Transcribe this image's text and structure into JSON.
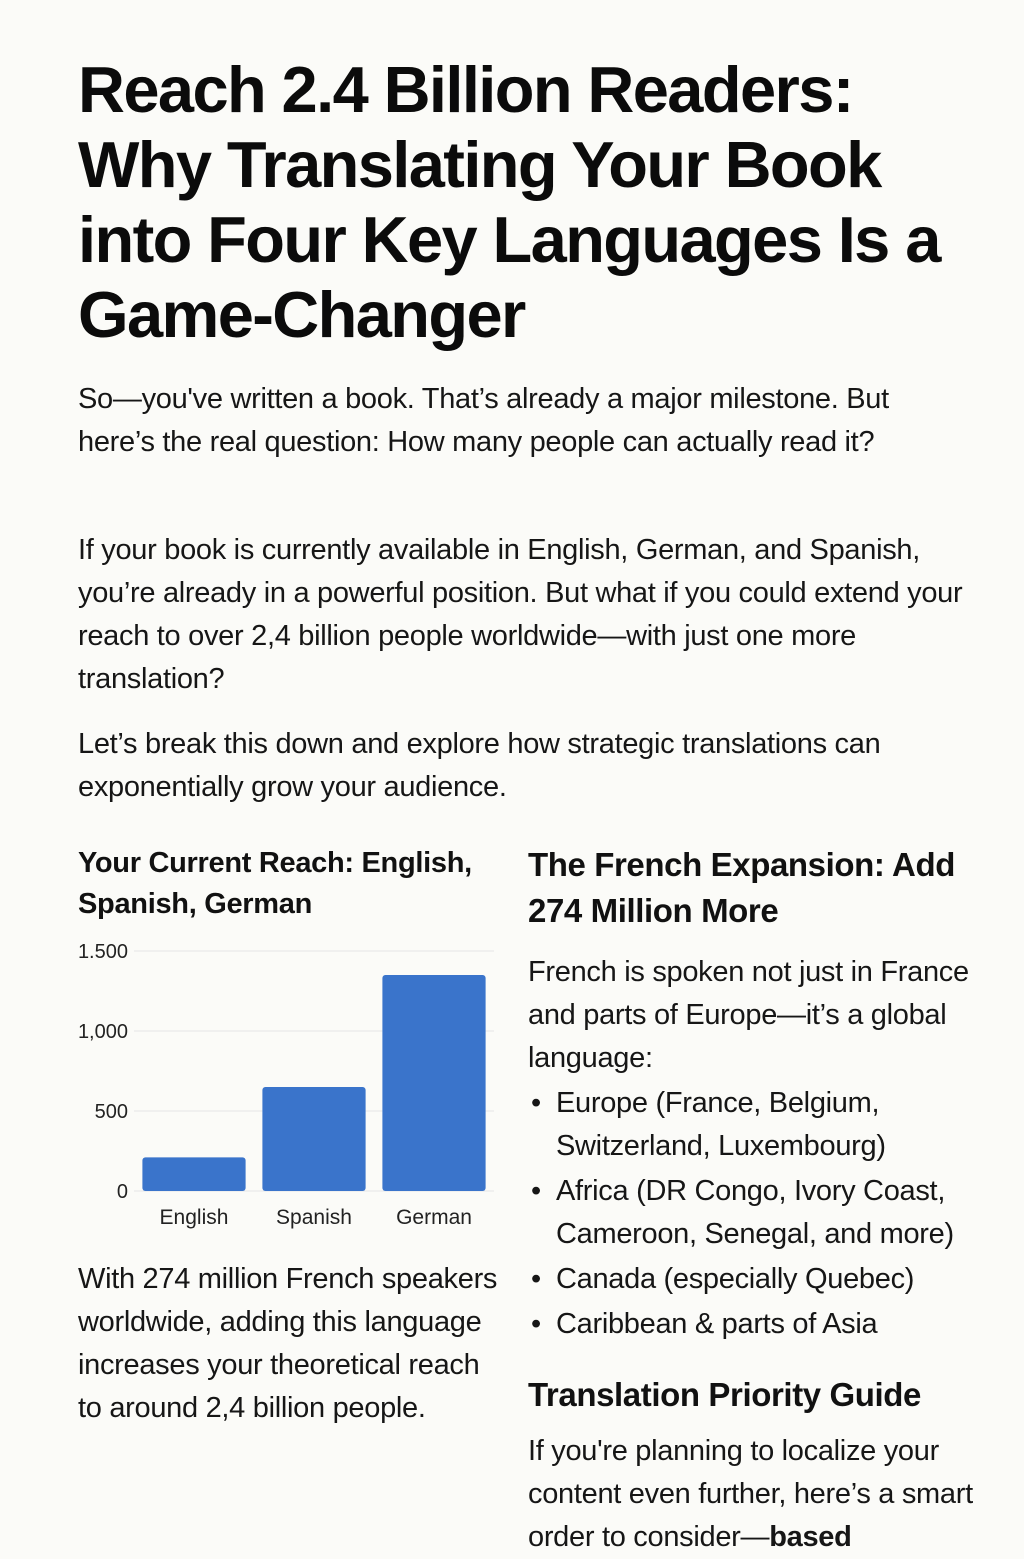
{
  "article": {
    "title": "Reach 2.4 Billion Readers: Why Translating Your Book into Four Key Languages Is a Game-Changer",
    "intro_paragraphs": [
      "So—you've written a book. That’s already a major milestone. But here’s the real question: How many people can actually read it?",
      "If your book is currently available in English, German, and Spanish, you’re already in a powerful position. But what if you could extend your reach to over 2,4 billion people worldwide—with just one more translation?",
      "Let’s break this down and explore how strategic translations can exponentially grow your audience."
    ]
  },
  "left_column": {
    "chart_heading": "Your Current Reach: English, Spanish, German",
    "after_chart_text": "With 274 million French speakers worldwide, adding this language increases your theoretical reach to around 2,4 billion people."
  },
  "right_column": {
    "french_heading": "The French Expansion: Add 274 Million More",
    "french_body": "French is spoken not just in France and parts of Europe—it’s a global language:",
    "bullets": [
      "Europe (France, Belgium, Switzerland, Luxembourg)",
      "Africa (DR Congo, Ivory Coast, Cameroon, Senegal, and more)",
      "Canada (especially Quebec)",
      "Caribbean & parts of Asia"
    ],
    "bullet_symbol": "•",
    "priority_heading": "Translation Priority Guide",
    "priority_body_text": "If you're planning to localize your content even further, here’s a smart order to consider—",
    "priority_body_bold": "based"
  },
  "chart_data": {
    "type": "bar",
    "categories": [
      "English",
      "Spanish",
      "German"
    ],
    "values": [
      210,
      650,
      1350
    ],
    "ylim": [
      0,
      1500
    ],
    "yticks": [
      {
        "value": 0,
        "label": "0"
      },
      {
        "value": 500,
        "label": "500"
      },
      {
        "value": 1000,
        "label": "1,000"
      },
      {
        "value": 1500,
        "label": "1.500"
      }
    ],
    "bar_color": "#3a74cb",
    "grid": true,
    "title": "",
    "xlabel": "",
    "ylabel": ""
  }
}
